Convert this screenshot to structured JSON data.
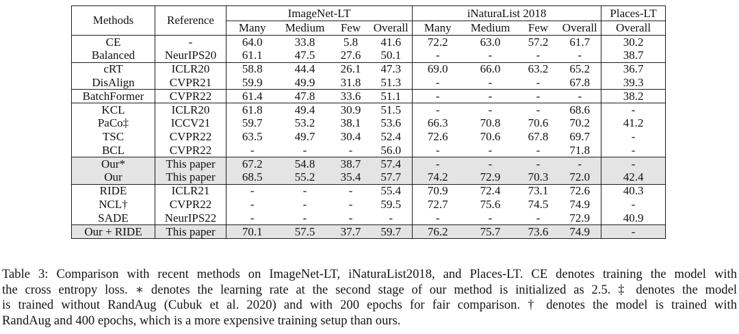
{
  "table": {
    "header": {
      "methods": "Methods",
      "reference": "Reference",
      "groups": [
        {
          "label": "ImageNet-LT",
          "cols": [
            "Many",
            "Medium",
            "Few",
            "Overall"
          ]
        },
        {
          "label": "iNaturaList 2018",
          "cols": [
            "Many",
            "Medium",
            "Few",
            "Overall"
          ]
        },
        {
          "label": "Places-LT",
          "cols": [
            "Overall"
          ]
        }
      ]
    },
    "shaded_color": "#e4e4e4",
    "row_groups": [
      {
        "shaded": false,
        "rows": [
          {
            "method": "CE",
            "reference": "-",
            "values": [
              "64.0",
              "33.8",
              "5.8",
              "41.6",
              "72.2",
              "63.0",
              "57.2",
              "61.7",
              "30.2"
            ],
            "bold": []
          },
          {
            "method": "Balanced",
            "reference": "NeurIPS20",
            "values": [
              "61.1",
              "47.5",
              "27.6",
              "50.1",
              "-",
              "-",
              "-",
              "-",
              "38.7"
            ],
            "bold": []
          }
        ]
      },
      {
        "shaded": false,
        "rows": [
          {
            "method": "cRT",
            "reference": "ICLR20",
            "values": [
              "58.8",
              "44.4",
              "26.1",
              "47.3",
              "69.0",
              "66.0",
              "63.2",
              "65.2",
              "36.7"
            ],
            "bold": []
          },
          {
            "method": "DisAlign",
            "reference": "CVPR21",
            "values": [
              "59.9",
              "49.9",
              "31.8",
              "51.3",
              "-",
              "-",
              "-",
              "67.8",
              "39.3"
            ],
            "bold": []
          }
        ]
      },
      {
        "shaded": false,
        "rows": [
          {
            "method": "BatchFormer",
            "reference": "CVPR22",
            "values": [
              "61.4",
              "47.8",
              "33.6",
              "51.1",
              "-",
              "-",
              "-",
              "-",
              "38.2"
            ],
            "bold": []
          }
        ]
      },
      {
        "shaded": false,
        "rows": [
          {
            "method": "KCL",
            "reference": "ICLR20",
            "values": [
              "61.8",
              "49.4",
              "30.9",
              "51.5",
              "-",
              "-",
              "-",
              "68.6",
              "-"
            ],
            "bold": []
          },
          {
            "method": "PaCo‡",
            "reference": "ICCV21",
            "values": [
              "59.7",
              "53.2",
              "38.1",
              "53.6",
              "66.3",
              "70.8",
              "70.6",
              "70.2",
              "41.2"
            ],
            "bold": []
          },
          {
            "method": "TSC",
            "reference": "CVPR22",
            "values": [
              "63.5",
              "49.7",
              "30.4",
              "52.4",
              "72.6",
              "70.6",
              "67.8",
              "69.7",
              "-"
            ],
            "bold": []
          },
          {
            "method": "BCL",
            "reference": "CVPR22",
            "values": [
              "-",
              "-",
              "-",
              "56.0",
              "-",
              "-",
              "-",
              "71.8",
              "-"
            ],
            "bold": []
          }
        ]
      },
      {
        "shaded": true,
        "rows": [
          {
            "method": "Our*",
            "reference": "This paper",
            "values": [
              "67.2",
              "54.8",
              "38.7",
              "57.4",
              "-",
              "-",
              "-",
              "-",
              "-"
            ],
            "bold": []
          },
          {
            "method": "Our",
            "reference": "This paper",
            "values": [
              "68.5",
              "55.2",
              "35.4",
              "57.7",
              "74.2",
              "72.9",
              "70.3",
              "72.0",
              "42.4"
            ],
            "bold": [
              3,
              7,
              8
            ]
          }
        ]
      },
      {
        "shaded": false,
        "rows": [
          {
            "method": "RIDE",
            "reference": "ICLR21",
            "values": [
              "-",
              "-",
              "-",
              "55.4",
              "70.9",
              "72.4",
              "73.1",
              "72.6",
              "40.3"
            ],
            "bold": []
          },
          {
            "method": "NCL†",
            "reference": "CVPR22",
            "values": [
              "-",
              "-",
              "-",
              "59.5",
              "72.7",
              "75.6",
              "74.5",
              "74.9",
              "-"
            ],
            "bold": [
              7
            ]
          },
          {
            "method": "SADE",
            "reference": "NeurIPS22",
            "values": [
              "-",
              "-",
              "-",
              "-",
              "-",
              "-",
              "-",
              "72.9",
              "40.9"
            ],
            "bold": []
          }
        ]
      },
      {
        "shaded": true,
        "rows": [
          {
            "method": "Our + RIDE",
            "reference": "This paper",
            "values": [
              "70.1",
              "57.5",
              "37.7",
              "59.7",
              "76.2",
              "75.7",
              "73.6",
              "74.9",
              "-"
            ],
            "bold": [
              3,
              7
            ]
          }
        ]
      }
    ]
  },
  "caption": {
    "lines": [
      "Table 3: Comparison with recent methods on ImageNet-LT, iNaturaList2018, and Places-LT. CE denotes training the model with",
      "the cross entropy loss. ∗ denotes the learning rate at the second stage of our method is initialized as 2.5. ‡ denotes the model",
      "is trained without RandAug (Cubuk et al. 2020) and with 200 epochs for fair comparison. † denotes the model is trained with",
      "RandAug and 400 epochs, which is a more expensive training setup than ours."
    ]
  }
}
